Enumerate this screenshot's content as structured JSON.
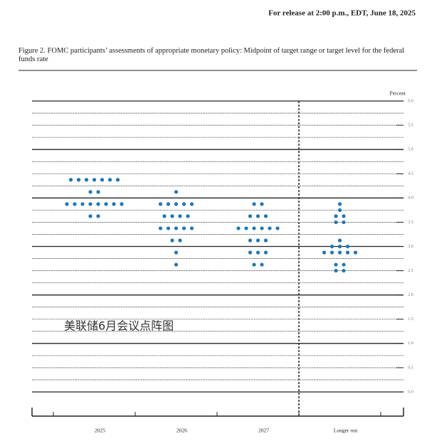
{
  "header": "For release at 2:00 p.m., EDT, June 18, 2025",
  "chart_data": {
    "type": "dot",
    "title": "Figure 2.  FOMC participants’ assessments of appropriate monetary policy: Midpoint of target range or target level for the federal funds rate",
    "y_label": "Percent",
    "watermark": "美联储6月会议点阵图",
    "categories": [
      "2025",
      "2026",
      "2027",
      "Longer run"
    ],
    "values": [
      [
        4.375,
        4.125,
        3.875,
        3.625
      ],
      [
        4.125,
        3.875,
        3.625,
        3.375,
        3.125,
        2.875,
        2.625
      ],
      [
        3.875,
        3.625,
        3.375,
        3.125,
        2.875,
        2.625
      ],
      [
        3.875,
        3.75,
        3.625,
        3.5,
        3.125,
        3.0,
        2.875,
        2.625,
        2.5
      ]
    ],
    "counts": [
      [
        7,
        2,
        8,
        2
      ],
      [
        1,
        5,
        4,
        5,
        2,
        1,
        1
      ],
      [
        2,
        3,
        6,
        3,
        3,
        2
      ],
      [
        1,
        1,
        2,
        2,
        1,
        3,
        5,
        2,
        2
      ]
    ],
    "color": "#1f77b4",
    "ylim": [
      0,
      6
    ],
    "yticks": [
      {
        "value": 0,
        "label": "0.0"
      },
      {
        "value": 0.5,
        "label": "0.5"
      },
      {
        "value": 1,
        "label": "1.0"
      },
      {
        "value": 1.5,
        "label": "1.5"
      },
      {
        "value": 2,
        "label": "2.0"
      },
      {
        "value": 2.5,
        "label": "2.5"
      },
      {
        "value": 3,
        "label": "3.0"
      },
      {
        "value": 3.5,
        "label": "3.5"
      },
      {
        "value": 4,
        "label": "4.0"
      },
      {
        "value": 4.5,
        "label": "4.5"
      },
      {
        "value": 5,
        "label": "5.0"
      },
      {
        "value": 5.5,
        "label": "5.5"
      },
      {
        "value": 6,
        "label": "6.0"
      }
    ],
    "grid": true
  }
}
